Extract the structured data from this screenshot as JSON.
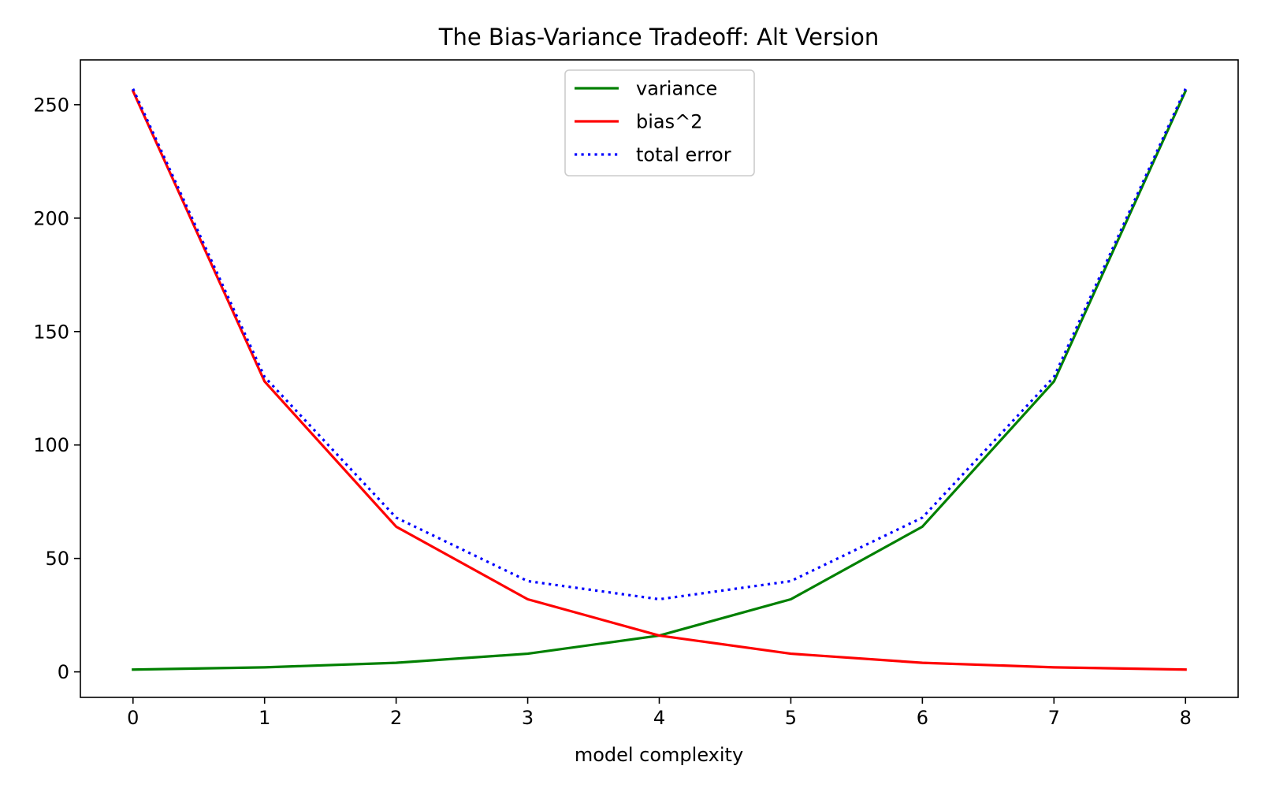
{
  "chart_data": {
    "type": "line",
    "title": "The Bias-Variance Tradeoff: Alt Version",
    "xlabel": "model complexity",
    "ylabel": "",
    "x": [
      0,
      1,
      2,
      3,
      4,
      5,
      6,
      7,
      8
    ],
    "xlim": [
      -0.4,
      8.4
    ],
    "ylim": [
      -11.25,
      269.75
    ],
    "x_ticks": [
      0,
      1,
      2,
      3,
      4,
      5,
      6,
      7,
      8
    ],
    "y_ticks": [
      0,
      50,
      100,
      150,
      200,
      250
    ],
    "grid": false,
    "legend_position": "upper-center",
    "series": [
      {
        "name": "variance",
        "values": [
          1,
          2,
          4,
          8,
          16,
          32,
          64,
          128,
          256
        ],
        "color": "#008000",
        "style": "solid"
      },
      {
        "name": "bias^2",
        "values": [
          256,
          128,
          64,
          32,
          16,
          8,
          4,
          2,
          1
        ],
        "color": "#ff0000",
        "style": "solid"
      },
      {
        "name": "total error",
        "values": [
          257,
          130,
          68,
          40,
          32,
          40,
          68,
          130,
          257
        ],
        "color": "#0000ff",
        "style": "dotted"
      }
    ]
  }
}
